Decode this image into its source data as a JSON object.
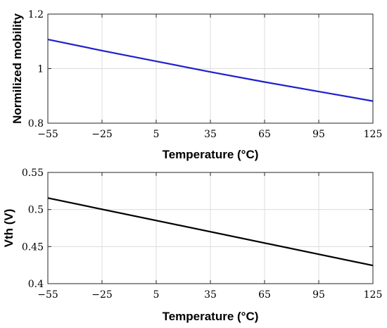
{
  "chart_data": [
    {
      "type": "line",
      "xlabel": "Temperature (°C)",
      "ylabel": "Normilized mobility",
      "xlim": [
        -55,
        125
      ],
      "ylim": [
        0.8,
        1.2
      ],
      "xticks": [
        -55,
        -25,
        5,
        35,
        65,
        95,
        125
      ],
      "xtick_labels": [
        "−55",
        "−25",
        "5",
        "35",
        "65",
        "95",
        "125"
      ],
      "yticks": [
        0.8,
        1.0,
        1.2
      ],
      "ytick_labels": [
        "0.8",
        "1",
        "1.2"
      ],
      "grid": true,
      "series": [
        {
          "color": "#1f1fcc",
          "x": [
            -55,
            -25,
            5,
            35,
            65,
            95,
            125
          ],
          "y": [
            1.107,
            1.066,
            1.027,
            0.988,
            0.951,
            0.916,
            0.881
          ]
        }
      ]
    },
    {
      "type": "line",
      "xlabel": "Temperature (°C)",
      "ylabel": "Vth (V)",
      "xlim": [
        -55,
        125
      ],
      "ylim": [
        0.4,
        0.55
      ],
      "xticks": [
        -55,
        -25,
        5,
        35,
        65,
        95,
        125
      ],
      "xtick_labels": [
        "−55",
        "−25",
        "5",
        "35",
        "65",
        "95",
        "125"
      ],
      "yticks": [
        0.4,
        0.45,
        0.5,
        0.55
      ],
      "ytick_labels": [
        "0.4",
        "0.45",
        "0.5",
        "0.55"
      ],
      "grid": true,
      "series": [
        {
          "color": "#000000",
          "x": [
            -55,
            125
          ],
          "y": [
            0.5155,
            0.4245
          ]
        }
      ]
    }
  ]
}
